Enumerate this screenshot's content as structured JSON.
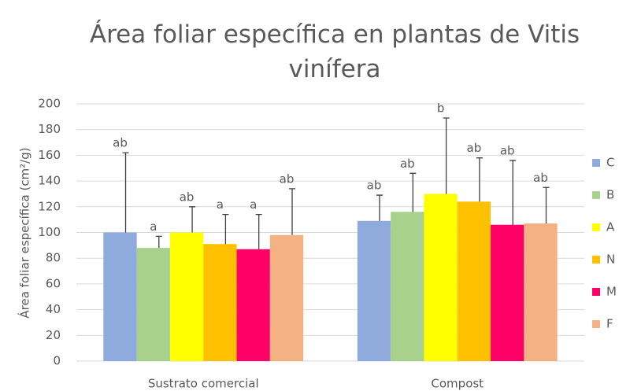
{
  "chart_data": {
    "type": "bar",
    "title": "Área foliar específica en plantas de Vitis vinífera",
    "y_label": "Área foliar específica (cm²/g)",
    "categories": [
      "Sustrato comercial",
      "Compost"
    ],
    "series": [
      {
        "name": "C",
        "color": "#8faadc",
        "values": [
          100,
          109
        ],
        "errors": [
          62,
          20
        ],
        "letters": [
          "ab",
          "ab"
        ]
      },
      {
        "name": "B",
        "color": "#a9d18e",
        "values": [
          88,
          116
        ],
        "errors": [
          9,
          30
        ],
        "letters": [
          "a",
          "ab"
        ]
      },
      {
        "name": "A",
        "color": "#ffff00",
        "values": [
          100,
          130
        ],
        "errors": [
          20,
          59
        ],
        "letters": [
          "ab",
          "b"
        ]
      },
      {
        "name": "N",
        "color": "#ffc000",
        "values": [
          91,
          124
        ],
        "errors": [
          23,
          34
        ],
        "letters": [
          "a",
          "ab"
        ]
      },
      {
        "name": "M",
        "color": "#ff0066",
        "values": [
          87,
          106
        ],
        "errors": [
          27,
          50
        ],
        "letters": [
          "a",
          "ab"
        ]
      },
      {
        "name": "F",
        "color": "#f4b183",
        "values": [
          98,
          107
        ],
        "errors": [
          36,
          28
        ],
        "letters": [
          "ab",
          "ab"
        ]
      }
    ],
    "ylim": [
      0,
      200
    ],
    "yticks": [
      0,
      20,
      40,
      60,
      80,
      100,
      120,
      140,
      160,
      180,
      200
    ],
    "grid": true,
    "legend": "right"
  }
}
